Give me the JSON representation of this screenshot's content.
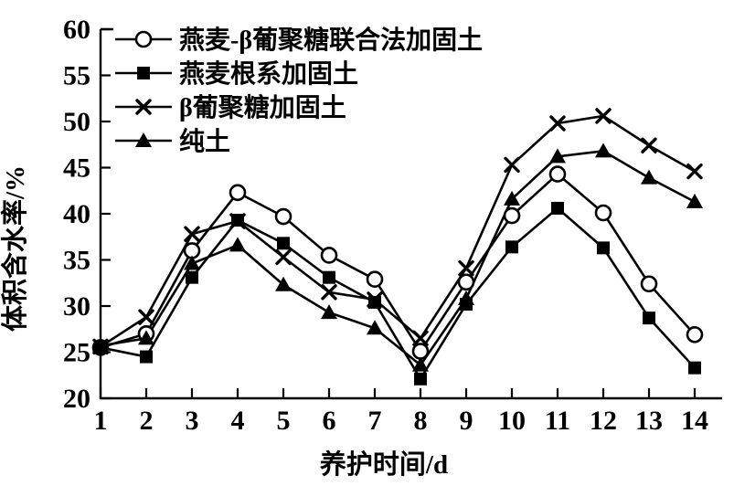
{
  "chart_data": {
    "type": "line",
    "title": "",
    "xlabel": "养护时间/d",
    "ylabel": "体积含水率/%",
    "x": [
      1,
      2,
      3,
      4,
      5,
      6,
      7,
      8,
      9,
      10,
      11,
      12,
      13,
      14
    ],
    "xlim": [
      1,
      14
    ],
    "ylim": [
      20,
      60
    ],
    "ytick_step": 5,
    "yticks": [
      20,
      25,
      30,
      35,
      40,
      45,
      50,
      55,
      60
    ],
    "grid": false,
    "legend_position": "top-left-inside",
    "series": [
      {
        "name": "燕麦-β葡聚糖联合法加固土",
        "marker": "circle-open",
        "values": [
          25.5,
          27.0,
          36.0,
          42.3,
          39.7,
          35.5,
          32.9,
          25.1,
          32.6,
          39.8,
          44.3,
          40.1,
          32.4,
          26.9
        ]
      },
      {
        "name": "燕麦根系加固土",
        "marker": "square-filled",
        "values": [
          25.5,
          24.5,
          33.1,
          39.3,
          36.8,
          33.1,
          30.4,
          22.1,
          30.2,
          36.4,
          40.6,
          36.3,
          28.7,
          23.3
        ]
      },
      {
        "name": "β葡聚糖加固土",
        "marker": "x",
        "values": [
          25.6,
          28.8,
          37.8,
          39.2,
          35.3,
          31.5,
          30.7,
          26.5,
          34.1,
          45.3,
          49.8,
          50.6,
          47.4,
          44.6
        ]
      },
      {
        "name": "纯土",
        "marker": "triangle-filled",
        "values": [
          25.7,
          26.5,
          34.6,
          36.6,
          32.3,
          29.3,
          27.6,
          23.6,
          30.8,
          41.6,
          46.2,
          46.8,
          43.9,
          41.3
        ]
      }
    ],
    "colors": {
      "line": "#000000",
      "background": "#ffffff"
    }
  }
}
